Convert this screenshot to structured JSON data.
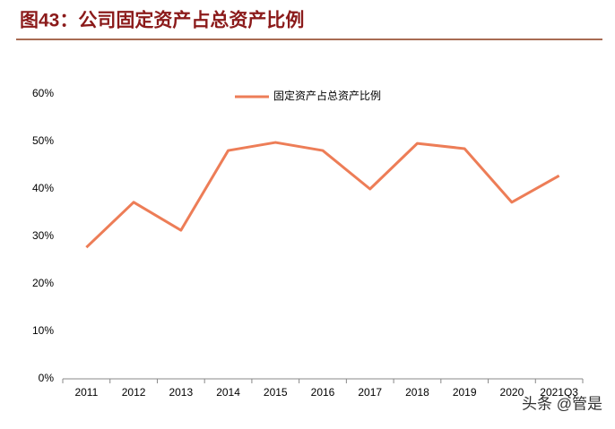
{
  "chart_data": {
    "type": "line",
    "title": "图43：公司固定资产占总资产比例",
    "categories": [
      "2011",
      "2012",
      "2013",
      "2014",
      "2015",
      "2016",
      "2017",
      "2018",
      "2019",
      "2020",
      "2021Q3"
    ],
    "series": [
      {
        "name": "固定资产占总资产比例",
        "color": "#ed7d57",
        "values": [
          27.7,
          37.2,
          31.3,
          48.1,
          49.8,
          48.1,
          40.0,
          49.6,
          48.5,
          37.2,
          42.8
        ]
      }
    ],
    "ylim": [
      0,
      60
    ],
    "yticks": [
      {
        "value": 0,
        "label": "0%"
      },
      {
        "value": 10,
        "label": "10%"
      },
      {
        "value": 20,
        "label": "20%"
      },
      {
        "value": 30,
        "label": "30%"
      },
      {
        "value": 40,
        "label": "40%"
      },
      {
        "value": 50,
        "label": "50%"
      },
      {
        "value": 60,
        "label": "60%"
      }
    ],
    "legend": "top"
  },
  "watermark": "头条 @管是"
}
